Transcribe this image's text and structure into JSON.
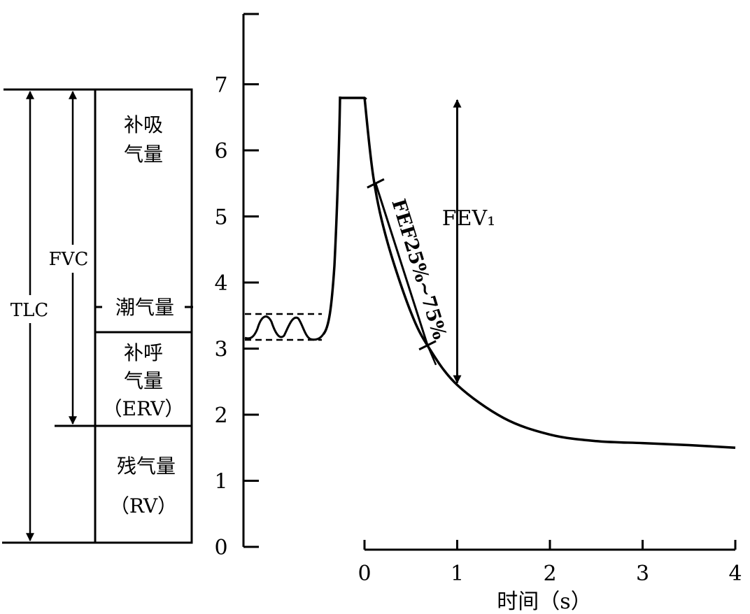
{
  "diagram": {
    "lung_volumes": {
      "irv": [
        "补吸",
        "气量"
      ],
      "tidal": "潮气量",
      "erv": [
        "补呼",
        "气量",
        "（ERV）"
      ],
      "rv": [
        "残气量",
        "（RV）"
      ]
    },
    "side_labels": {
      "fvc": "FVC",
      "tlc": "TLC"
    },
    "annotations": {
      "fev1": "FEV₁",
      "fef": "FEF25%~75%"
    }
  },
  "chart_data": {
    "type": "line",
    "xlabel": "时间（s）",
    "ylabel": "",
    "x_ticks": [
      "0",
      "1",
      "2",
      "3",
      "4"
    ],
    "y_ticks": [
      "0",
      "1",
      "2",
      "3",
      "4",
      "5",
      "6",
      "7"
    ],
    "xlim": [
      0,
      4
    ],
    "ylim": [
      0,
      8
    ],
    "series": [
      {
        "x": [
          0.0,
          0.1,
          0.25,
          0.5,
          0.7,
          1.0,
          1.5,
          2.0,
          2.5,
          3.0,
          3.5,
          4.0
        ],
        "y": [
          6.8,
          5.55,
          4.6,
          3.55,
          3.0,
          2.45,
          1.95,
          1.7,
          1.6,
          1.57,
          1.54,
          1.5
        ]
      }
    ]
  }
}
